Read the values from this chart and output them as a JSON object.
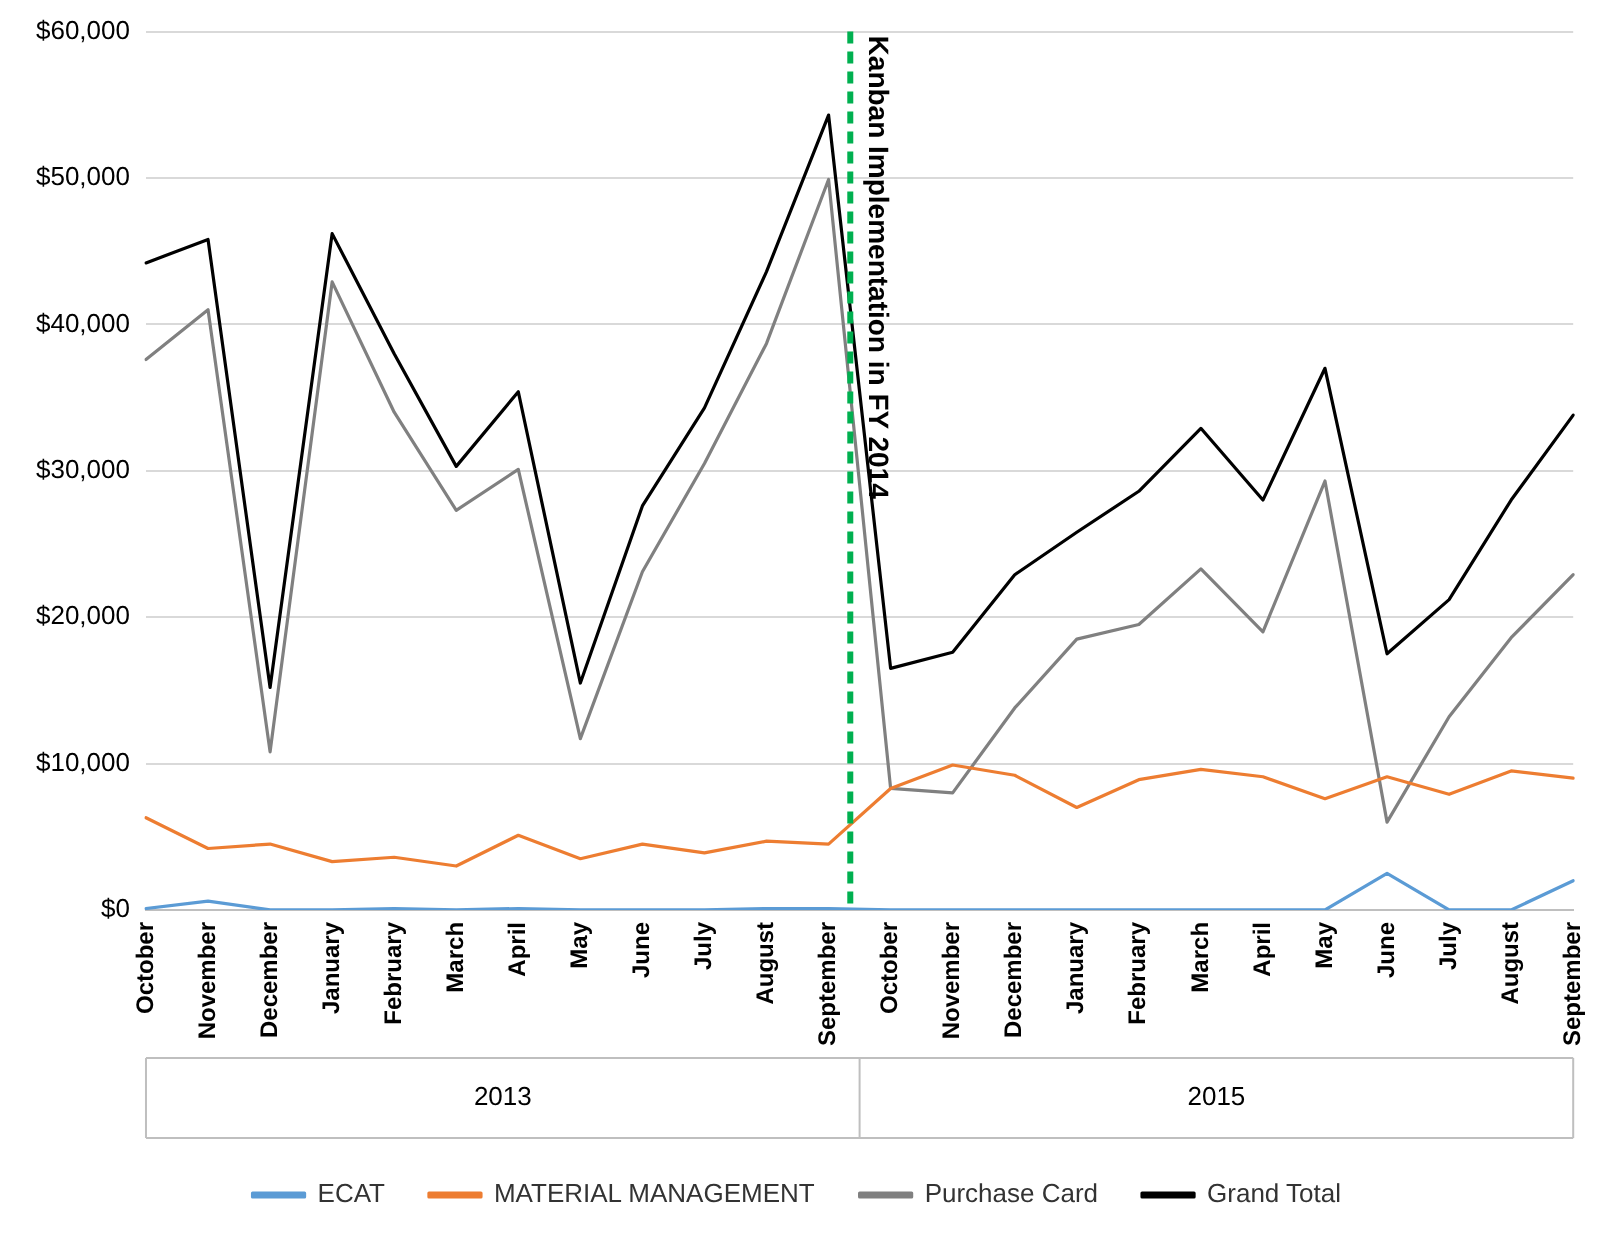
{
  "chart_data": {
    "type": "line",
    "categories": [
      "October",
      "November",
      "December",
      "January",
      "February",
      "March",
      "April",
      "May",
      "June",
      "July",
      "August",
      "September",
      "October",
      "November",
      "December",
      "January",
      "February",
      "March",
      "April",
      "May",
      "June",
      "July",
      "August",
      "September"
    ],
    "series": [
      {
        "name": "ECAT",
        "color": "#5b9bd5",
        "values": [
          100,
          600,
          0,
          0,
          100,
          0,
          100,
          0,
          0,
          0,
          100,
          100,
          0,
          0,
          0,
          0,
          0,
          0,
          0,
          0,
          2500,
          0,
          0,
          2000
        ]
      },
      {
        "name": "MATERIAL MANAGEMENT",
        "color": "#ed7d31",
        "values": [
          6300,
          4200,
          4500,
          3300,
          3600,
          3000,
          5100,
          3500,
          4500,
          3900,
          4700,
          4500,
          8300,
          9900,
          9200,
          7000,
          8900,
          9600,
          9100,
          7600,
          9100,
          7900,
          9500,
          9000
        ]
      },
      {
        "name": "Purchase Card",
        "color": "#808080",
        "values": [
          37600,
          41000,
          10800,
          42900,
          34000,
          27300,
          30100,
          11700,
          23100,
          30500,
          38700,
          49900,
          8300,
          8000,
          13800,
          18500,
          19500,
          23300,
          19000,
          29300,
          6000,
          13200,
          18600,
          22900
        ]
      },
      {
        "name": "Grand Total",
        "color": "#000000",
        "values": [
          44200,
          45800,
          15200,
          46200,
          38000,
          30300,
          35400,
          15500,
          27600,
          34300,
          43600,
          54300,
          16500,
          17600,
          22900,
          25800,
          28600,
          32900,
          28000,
          37000,
          17500,
          21200,
          28000,
          33800
        ]
      }
    ],
    "ylim": [
      0,
      60000
    ],
    "yticks": [
      {
        "value": 0,
        "label": "$0"
      },
      {
        "value": 10000,
        "label": "$10,000"
      },
      {
        "value": 20000,
        "label": "$20,000"
      },
      {
        "value": 30000,
        "label": "$30,000"
      },
      {
        "value": 40000,
        "label": "$40,000"
      },
      {
        "value": 50000,
        "label": "$50,000"
      },
      {
        "value": 60000,
        "label": "$60,000"
      }
    ],
    "ref_lines": [
      {
        "axis": "x",
        "value": "September",
        "label": "Kanban Implementation in FY 2014",
        "color": "#00b050",
        "line_style": "dashed"
      }
    ],
    "annotations": [
      "2013",
      "2015"
    ],
    "grid": "y",
    "legend": "bottom",
    "marker": "none",
    "line_style": "solid"
  }
}
